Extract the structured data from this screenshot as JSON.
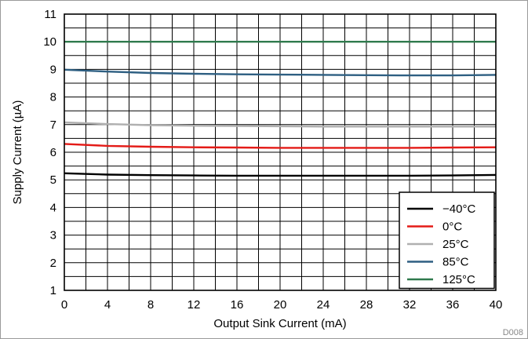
{
  "chart_data": {
    "type": "line",
    "title": "",
    "xlabel": "Output Sink Current (mA)",
    "ylabel": "Supply Current (µA)",
    "xlim": [
      0,
      40
    ],
    "ylim": [
      1,
      11
    ],
    "xticks": [
      0,
      4,
      8,
      12,
      16,
      20,
      24,
      28,
      32,
      36,
      40
    ],
    "yticks": [
      1,
      2,
      3,
      4,
      5,
      6,
      7,
      8,
      9,
      10,
      11
    ],
    "grid": true,
    "legend_position": "bottom-right",
    "figure_code": "D008",
    "series": [
      {
        "name": "−40°C",
        "color": "#000000",
        "x": [
          0,
          4,
          8,
          12,
          16,
          20,
          24,
          28,
          32,
          36,
          40
        ],
        "y": [
          5.24,
          5.19,
          5.17,
          5.16,
          5.15,
          5.15,
          5.15,
          5.15,
          5.15,
          5.16,
          5.18
        ]
      },
      {
        "name": "0°C",
        "color": "#e41b17",
        "x": [
          0,
          4,
          8,
          12,
          16,
          20,
          24,
          28,
          32,
          36,
          40
        ],
        "y": [
          6.3,
          6.23,
          6.2,
          6.18,
          6.17,
          6.16,
          6.16,
          6.16,
          6.16,
          6.17,
          6.18
        ]
      },
      {
        "name": "25°C",
        "color": "#b0b0b0",
        "x": [
          0,
          4,
          8,
          12,
          16,
          20,
          24,
          28,
          32,
          36,
          40
        ],
        "y": [
          7.08,
          7.02,
          6.98,
          6.96,
          6.95,
          6.94,
          6.93,
          6.93,
          6.93,
          6.93,
          6.93
        ]
      },
      {
        "name": "85°C",
        "color": "#2e5f82",
        "x": [
          0,
          4,
          8,
          12,
          16,
          20,
          24,
          28,
          32,
          36,
          40
        ],
        "y": [
          8.99,
          8.92,
          8.87,
          8.84,
          8.82,
          8.81,
          8.8,
          8.79,
          8.78,
          8.78,
          8.8
        ]
      },
      {
        "name": "125°C",
        "color": "#2f7a4d",
        "x": [
          0,
          4,
          8,
          12,
          16,
          20,
          24,
          28,
          32,
          36,
          40
        ],
        "y": [
          10.0,
          10.0,
          10.0,
          10.0,
          10.0,
          10.0,
          10.0,
          10.0,
          10.0,
          10.0,
          10.0
        ]
      }
    ]
  }
}
